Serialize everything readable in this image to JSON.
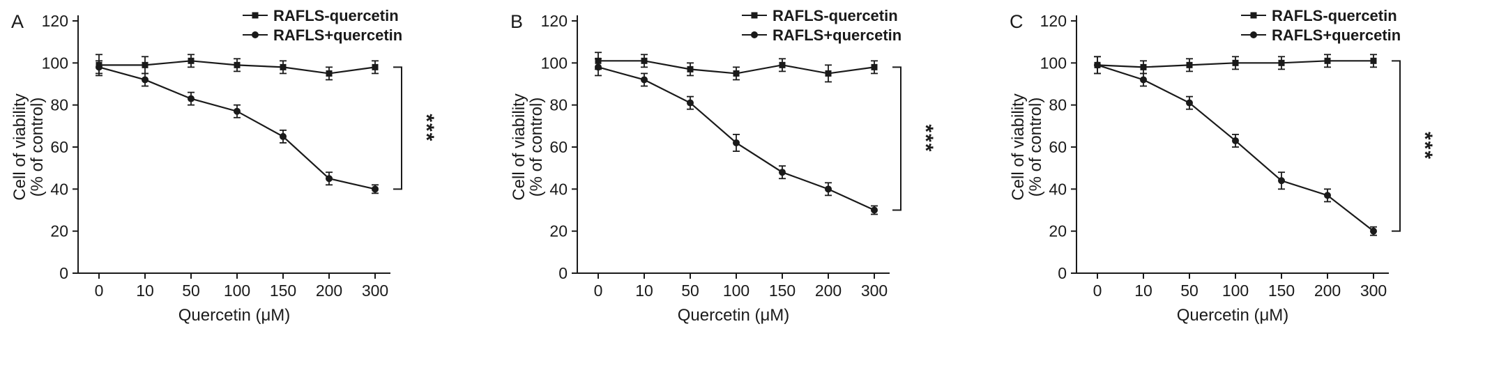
{
  "figure": {
    "background": "#ffffff",
    "ink_color": "#1a1a1a",
    "significance_label": "***"
  },
  "chart_data": [
    {
      "type": "line",
      "panel": "A",
      "title": "",
      "xlabel": "Quercetin (μM)",
      "ylabel_lines": [
        "Cell of viability",
        "(% of control)"
      ],
      "categories": [
        "0",
        "10",
        "50",
        "100",
        "150",
        "200",
        "300"
      ],
      "ylim": [
        0,
        120
      ],
      "yticks": [
        0,
        20,
        40,
        60,
        80,
        100,
        120
      ],
      "grid": false,
      "legend_position": "top-right",
      "series": [
        {
          "name": "RAFLS-quercetin",
          "marker": "square",
          "values": [
            99,
            99,
            101,
            99,
            98,
            95,
            98
          ],
          "errors": [
            5,
            4,
            3,
            3,
            3,
            3,
            3
          ]
        },
        {
          "name": "RAFLS+quercetin",
          "marker": "circle",
          "values": [
            98,
            92,
            83,
            77,
            65,
            45,
            40
          ],
          "errors": [
            3,
            3,
            3,
            3,
            3,
            3,
            2
          ]
        }
      ],
      "annotation": {
        "text": "***",
        "between": [
          "RAFLS-quercetin",
          "RAFLS+quercetin"
        ],
        "at_category": "300"
      }
    },
    {
      "type": "line",
      "panel": "B",
      "title": "",
      "xlabel": "Quercetin (μM)",
      "ylabel_lines": [
        "Cell of viability",
        "(% of control)"
      ],
      "categories": [
        "0",
        "10",
        "50",
        "100",
        "150",
        "200",
        "300"
      ],
      "ylim": [
        0,
        120
      ],
      "yticks": [
        0,
        20,
        40,
        60,
        80,
        100,
        120
      ],
      "grid": false,
      "legend_position": "top-right",
      "series": [
        {
          "name": "RAFLS-quercetin",
          "marker": "square",
          "values": [
            101,
            101,
            97,
            95,
            99,
            95,
            98
          ],
          "errors": [
            4,
            3,
            3,
            3,
            3,
            4,
            3
          ]
        },
        {
          "name": "RAFLS+quercetin",
          "marker": "circle",
          "values": [
            98,
            92,
            81,
            62,
            48,
            40,
            30
          ],
          "errors": [
            4,
            3,
            3,
            4,
            3,
            3,
            2
          ]
        }
      ],
      "annotation": {
        "text": "***",
        "between": [
          "RAFLS-quercetin",
          "RAFLS+quercetin"
        ],
        "at_category": "300"
      }
    },
    {
      "type": "line",
      "panel": "C",
      "title": "",
      "xlabel": "Quercetin (μM)",
      "ylabel_lines": [
        "Cell of viability",
        "(% of control)"
      ],
      "categories": [
        "0",
        "10",
        "50",
        "100",
        "150",
        "200",
        "300"
      ],
      "ylim": [
        0,
        120
      ],
      "yticks": [
        0,
        20,
        40,
        60,
        80,
        100,
        120
      ],
      "grid": false,
      "legend_position": "top-right",
      "series": [
        {
          "name": "RAFLS-quercetin",
          "marker": "square",
          "values": [
            99,
            98,
            99,
            100,
            100,
            101,
            101
          ],
          "errors": [
            4,
            3,
            3,
            3,
            3,
            3,
            3
          ]
        },
        {
          "name": "RAFLS+quercetin",
          "marker": "circle",
          "values": [
            99,
            92,
            81,
            63,
            44,
            37,
            20
          ],
          "errors": [
            4,
            3,
            3,
            3,
            4,
            3,
            2
          ]
        }
      ],
      "annotation": {
        "text": "***",
        "between": [
          "RAFLS-quercetin",
          "RAFLS+quercetin"
        ],
        "at_category": "300"
      }
    }
  ]
}
